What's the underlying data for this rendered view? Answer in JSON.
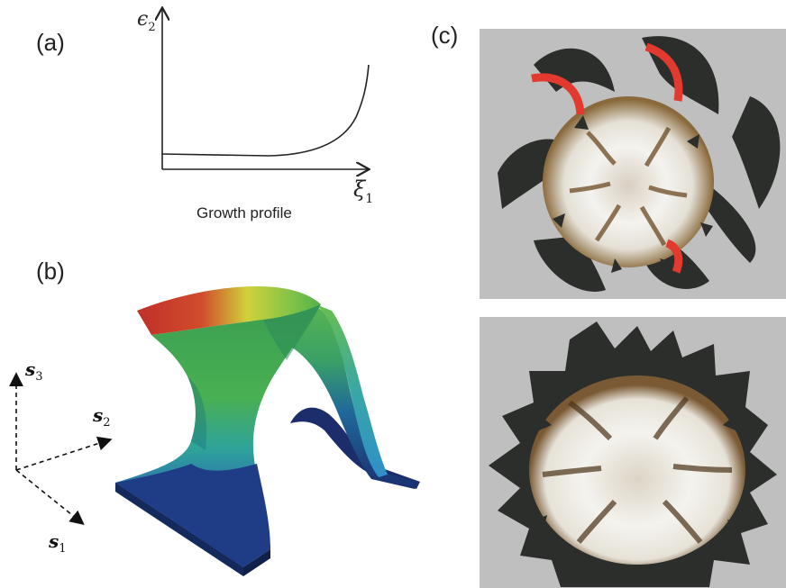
{
  "panels": {
    "a": {
      "label": "(a)",
      "y_symbol": "ϵ",
      "y_sub": "2",
      "x_symbol": "ξ",
      "x_sub": "1",
      "caption": "Growth profile"
    },
    "b": {
      "label": "(b)",
      "axes": [
        {
          "symbol": "s",
          "sub": "3"
        },
        {
          "symbol": "s",
          "sub": "2"
        },
        {
          "symbol": "s",
          "sub": "1"
        }
      ]
    },
    "c": {
      "label": "(c)"
    }
  },
  "colors": {
    "shell_bg": "#bfbfbf",
    "highlight_red": "#e23a2e",
    "shell_dark": "#2b2d2a",
    "shell_light": "#f2f1ec"
  }
}
